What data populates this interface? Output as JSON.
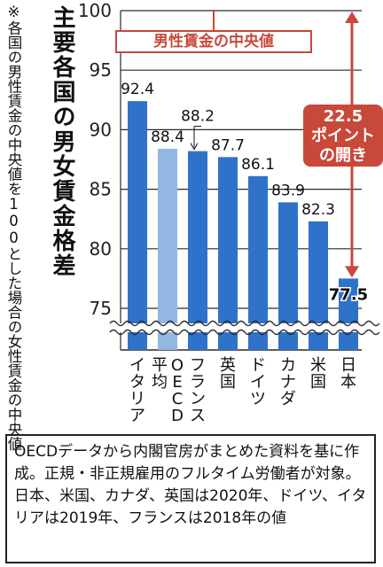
{
  "title": "主要各国の男女賃金格差",
  "note": "※各国の男性賃金の中央値を100とした場合の女性賃金の中央値",
  "annotation": {
    "male_median_label": "男性賃金の中央値",
    "gap_line1": "22.5",
    "gap_line2": "ポイント",
    "gap_line3": "の開き"
  },
  "footer": "OECDデータから内閣官房がまとめた資料を基に作成。正規・非正規雇用のフルタイム労働者が対象。日本、米国、カナダ、英国は2020年、ドイツ、イタリアは2019年、フランスは2018年の値",
  "colors": {
    "bar": "#2f72c9",
    "bar_oecd": "#93b7e3",
    "accent": "#c8483a",
    "grid": "#2a2a2a"
  },
  "chart_data": {
    "type": "bar",
    "categories": [
      "イタリア",
      "平均",
      "フランス",
      "英国",
      "ドイツ",
      "カナダ",
      "米国",
      "日本"
    ],
    "category_labels": [
      "イタリア",
      "平均\nOECD",
      "フランス",
      "英国",
      "ドイツ",
      "カナダ",
      "米国",
      "日本"
    ],
    "values": [
      92.4,
      88.4,
      88.2,
      87.7,
      86.1,
      83.9,
      82.3,
      77.5
    ],
    "value_labels": [
      "92.4",
      "88.4",
      "88.2",
      "87.7",
      "86.1",
      "83.9",
      "82.3",
      "77.5"
    ],
    "yticks": [
      "100",
      "95",
      "90",
      "85",
      "80",
      "75"
    ],
    "ylim": [
      75,
      100
    ],
    "axis_break": true,
    "highlight_index": 1,
    "grid": true,
    "title": "主要各国の男女賃金格差"
  }
}
